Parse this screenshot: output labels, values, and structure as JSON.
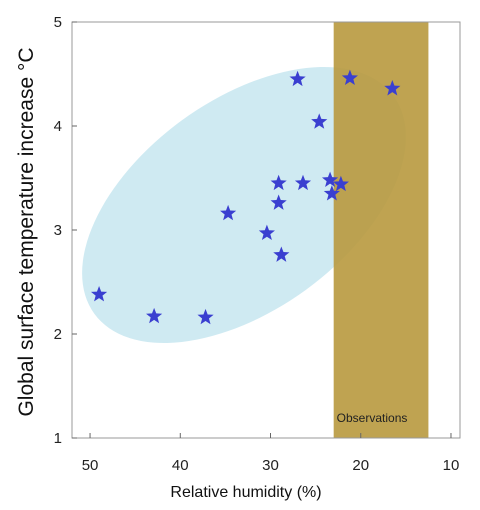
{
  "chart_data": {
    "type": "scatter",
    "xlabel": "Relative humidity (%)",
    "ylabel": "Global surface temperature increase °C",
    "xlim": [
      52,
      9
    ],
    "ylim": [
      1,
      5
    ],
    "x_ticks": [
      50,
      40,
      30,
      20,
      10
    ],
    "y_ticks": [
      1,
      2,
      3,
      4,
      5
    ],
    "x_reversed": true,
    "grid": false,
    "series": [
      {
        "marker": "star",
        "color": "#3a3fd0",
        "points": [
          {
            "x": 49.0,
            "y": 2.38
          },
          {
            "x": 42.9,
            "y": 2.17
          },
          {
            "x": 37.2,
            "y": 2.16
          },
          {
            "x": 34.7,
            "y": 3.16
          },
          {
            "x": 30.4,
            "y": 2.97
          },
          {
            "x": 28.8,
            "y": 2.76
          },
          {
            "x": 29.1,
            "y": 3.26
          },
          {
            "x": 29.1,
            "y": 3.45
          },
          {
            "x": 26.4,
            "y": 3.45
          },
          {
            "x": 27.0,
            "y": 4.45
          },
          {
            "x": 24.6,
            "y": 4.04
          },
          {
            "x": 23.4,
            "y": 3.48
          },
          {
            "x": 23.2,
            "y": 3.35
          },
          {
            "x": 22.2,
            "y": 3.44
          },
          {
            "x": 21.2,
            "y": 4.46
          },
          {
            "x": 16.5,
            "y": 4.36
          }
        ]
      }
    ],
    "observations": {
      "label": "Observations",
      "x_range": [
        23,
        12.5
      ],
      "color": "#b8993e"
    },
    "ellipse": {
      "color": "#bfe3ee"
    }
  }
}
